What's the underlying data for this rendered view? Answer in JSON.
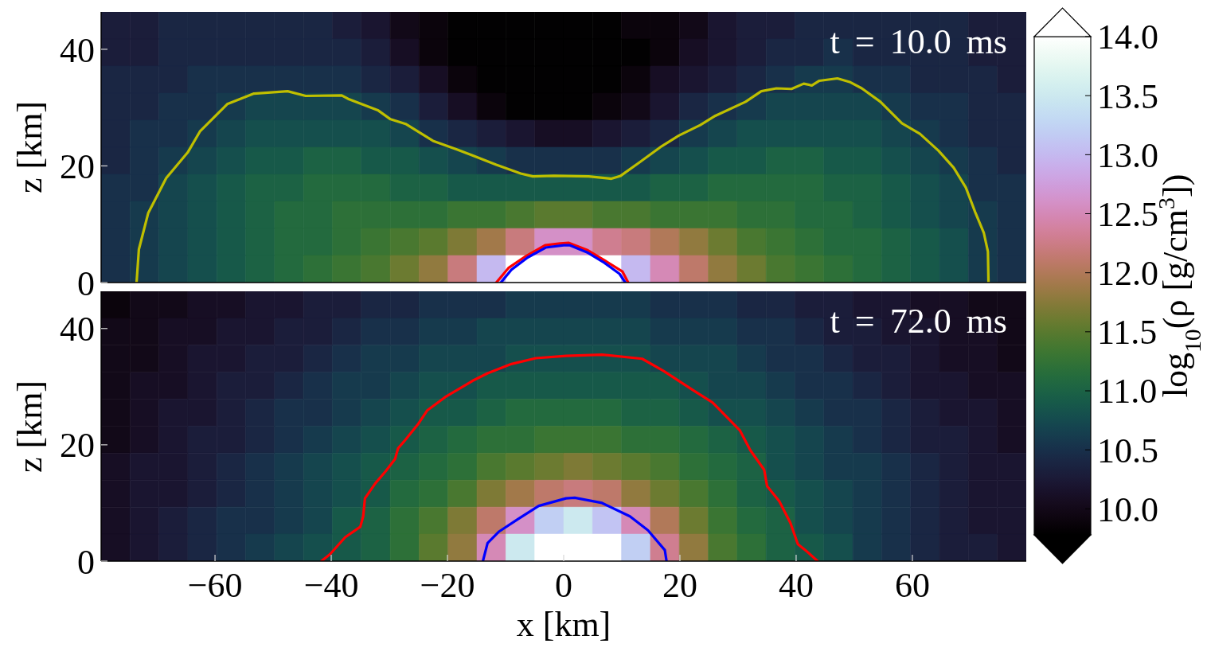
{
  "chart_data": [
    {
      "type": "heatmap",
      "cells": [
        [
          10.3,
          10.3,
          10.4,
          10.4,
          10.4,
          10.4,
          10.4,
          10.4,
          10.3,
          10.2,
          10.0,
          9.9,
          9.8,
          9.8,
          9.8,
          9.8,
          9.8,
          9.8,
          9.9,
          9.9,
          10.0,
          10.2,
          10.3,
          10.3,
          10.4,
          10.4,
          10.4,
          10.4,
          10.4,
          10.4,
          10.3,
          10.3
        ],
        [
          10.3,
          10.3,
          10.4,
          10.4,
          10.4,
          10.4,
          10.4,
          10.4,
          10.4,
          10.3,
          10.1,
          9.9,
          9.8,
          9.8,
          9.8,
          9.8,
          9.8,
          9.8,
          9.8,
          9.9,
          10.1,
          10.2,
          10.3,
          10.4,
          10.4,
          10.5,
          10.4,
          10.4,
          10.4,
          10.4,
          10.3,
          10.3
        ],
        [
          10.4,
          10.4,
          10.4,
          10.5,
          10.5,
          10.5,
          10.5,
          10.5,
          10.5,
          10.4,
          10.3,
          10.1,
          9.9,
          9.8,
          9.8,
          9.8,
          9.8,
          9.8,
          9.9,
          10.1,
          10.2,
          10.3,
          10.4,
          10.5,
          10.6,
          10.6,
          10.5,
          10.5,
          10.4,
          10.4,
          10.4,
          10.3
        ],
        [
          10.4,
          10.4,
          10.5,
          10.5,
          10.6,
          10.7,
          10.7,
          10.7,
          10.7,
          10.6,
          10.5,
          10.3,
          10.1,
          9.9,
          9.8,
          9.8,
          9.8,
          9.9,
          10.0,
          10.2,
          10.4,
          10.5,
          10.6,
          10.7,
          10.7,
          10.7,
          10.7,
          10.6,
          10.5,
          10.5,
          10.4,
          10.4
        ],
        [
          10.4,
          10.5,
          10.5,
          10.6,
          10.7,
          10.8,
          10.8,
          10.8,
          10.8,
          10.8,
          10.7,
          10.5,
          10.4,
          10.3,
          10.2,
          10.1,
          10.1,
          10.2,
          10.3,
          10.4,
          10.6,
          10.7,
          10.8,
          10.8,
          10.8,
          10.8,
          10.8,
          10.7,
          10.6,
          10.5,
          10.4,
          10.4
        ],
        [
          10.4,
          10.5,
          10.6,
          10.7,
          10.8,
          10.9,
          10.9,
          11.0,
          11.0,
          10.9,
          10.9,
          10.8,
          10.7,
          10.6,
          10.5,
          10.5,
          10.5,
          10.5,
          10.6,
          10.7,
          10.8,
          10.9,
          10.9,
          11.0,
          11.0,
          10.9,
          10.9,
          10.8,
          10.7,
          10.6,
          10.5,
          10.4
        ],
        [
          10.5,
          10.5,
          10.7,
          10.8,
          10.9,
          11.0,
          11.0,
          11.1,
          11.1,
          11.1,
          11.0,
          11.0,
          10.9,
          10.9,
          10.9,
          10.9,
          10.9,
          10.9,
          10.9,
          11.0,
          11.0,
          11.1,
          11.1,
          11.1,
          11.1,
          11.0,
          11.0,
          10.9,
          10.8,
          10.7,
          10.5,
          10.5
        ],
        [
          10.5,
          10.6,
          10.7,
          10.8,
          10.9,
          11.0,
          11.1,
          11.1,
          11.2,
          11.2,
          11.2,
          11.2,
          11.3,
          11.3,
          11.4,
          11.5,
          11.5,
          11.4,
          11.4,
          11.3,
          11.3,
          11.3,
          11.2,
          11.2,
          11.1,
          11.1,
          11.0,
          10.9,
          10.8,
          10.7,
          10.6,
          10.5
        ],
        [
          10.5,
          10.6,
          10.7,
          10.8,
          10.9,
          11.0,
          11.1,
          11.1,
          11.2,
          11.3,
          11.4,
          11.5,
          11.7,
          11.9,
          12.2,
          12.6,
          12.6,
          12.3,
          12.2,
          12.0,
          11.8,
          11.6,
          11.4,
          11.3,
          11.2,
          11.1,
          11.1,
          11.0,
          10.9,
          10.8,
          10.6,
          10.5
        ],
        [
          10.5,
          10.6,
          10.7,
          10.8,
          10.9,
          11.0,
          11.1,
          11.2,
          11.3,
          11.4,
          11.6,
          11.8,
          12.2,
          13.0,
          14.0,
          14.0,
          14.0,
          14.0,
          13.0,
          12.5,
          12.1,
          11.8,
          11.6,
          11.4,
          11.3,
          11.2,
          11.1,
          11.0,
          10.9,
          10.8,
          10.6,
          10.5
        ]
      ],
      "xlim": [
        -79.6,
        79.6
      ],
      "xticks": [
        -60,
        -40,
        -20,
        0,
        20,
        40,
        60
      ],
      "ylim": [
        0,
        46.4
      ],
      "yticks": [
        0,
        20,
        40
      ],
      "ylabel": "z [km]",
      "tick_labels": "y",
      "clim": [
        9.78,
        14
      ],
      "cticks": [
        {
          "value": 12,
          "label": "12.0"
        },
        {
          "value": 12.5,
          "label": "12.5"
        },
        {
          "value": 13,
          "label": "13.0"
        },
        {
          "value": 13.5,
          "label": "13.5"
        },
        {
          "value": 14,
          "label": "14.0"
        }
      ],
      "clabel": "log$_{10}$(ρ [g/cm$^{3}$])",
      "annotations": [
        "t = 10.0 ms"
      ],
      "series": [
        {
          "type": "line",
          "color": "#bfbf00",
          "x": [
            -73.5,
            -73.1,
            -71.5,
            -68.4,
            -64.7,
            -62.6,
            -57.9,
            -53.3,
            -47.5,
            -44.4,
            -38.2,
            -37.1,
            -31.9,
            -29.8,
            -27.2,
            -22.5,
            -18.3,
            -15.7,
            -11.6,
            -7.4,
            -5.3,
            -1.7,
            4.3,
            8.2,
            9.8,
            12.9,
            16.9,
            19.8,
            23.5,
            26.1,
            31.3,
            34.0,
            36.6,
            39.2,
            41.3,
            42.7,
            44.0,
            47.1,
            49.2,
            51.3,
            54.5,
            58.2,
            61.3,
            64.5,
            67.1,
            69.2,
            70.8,
            72.3,
            73.0,
            73.1
          ],
          "values": [
            0,
            5.7,
            11.9,
            17.9,
            22.3,
            25.9,
            30.6,
            32.4,
            32.8,
            32.0,
            32.1,
            31.5,
            29.5,
            28.0,
            27.2,
            24.3,
            22.8,
            21.8,
            20.2,
            18.7,
            18.2,
            18.3,
            18.2,
            17.8,
            18.3,
            20.5,
            23.4,
            25.2,
            27.0,
            28.6,
            31.0,
            32.8,
            33.3,
            33.2,
            34.1,
            33.8,
            34.6,
            35.0,
            34.4,
            33.3,
            31.0,
            27.3,
            25.5,
            22.6,
            19.7,
            16.3,
            12.1,
            8.5,
            5.3,
            0
          ]
        },
        {
          "type": "line",
          "color": "#ff0000",
          "x": [
            -11.6,
            -9.5,
            -6.4,
            -3.2,
            -0.6,
            0.9,
            4.0,
            7.2,
            10.1,
            11.1
          ],
          "values": [
            0,
            2.5,
            4.6,
            6.4,
            6.7,
            6.8,
            5.6,
            3.7,
            1.9,
            0
          ]
        },
        {
          "type": "line",
          "color": "#0000ff",
          "x": [
            -10.8,
            -9.0,
            -6.2,
            -3.1,
            0.0,
            1.0,
            4.0,
            7.0,
            9.6,
            10.6
          ],
          "values": [
            0,
            2.2,
            4.3,
            6.0,
            6.4,
            6.4,
            5.2,
            3.4,
            1.5,
            0
          ]
        }
      ]
    },
    {
      "type": "heatmap",
      "cells": [
        [
          9.9,
          10.0,
          10.0,
          10.1,
          10.1,
          10.2,
          10.2,
          10.3,
          10.3,
          10.4,
          10.4,
          10.5,
          10.5,
          10.5,
          10.6,
          10.6,
          10.6,
          10.6,
          10.6,
          10.5,
          10.5,
          10.5,
          10.4,
          10.4,
          10.3,
          10.3,
          10.2,
          10.2,
          10.1,
          10.1,
          10.0,
          10.0
        ],
        [
          10.0,
          10.0,
          10.1,
          10.1,
          10.2,
          10.2,
          10.3,
          10.3,
          10.4,
          10.5,
          10.5,
          10.6,
          10.6,
          10.7,
          10.7,
          10.7,
          10.7,
          10.7,
          10.7,
          10.6,
          10.6,
          10.6,
          10.5,
          10.5,
          10.4,
          10.3,
          10.3,
          10.2,
          10.2,
          10.1,
          10.1,
          10.0
        ],
        [
          10.0,
          10.0,
          10.1,
          10.2,
          10.2,
          10.3,
          10.3,
          10.4,
          10.5,
          10.6,
          10.6,
          10.7,
          10.7,
          10.7,
          10.8,
          10.8,
          10.8,
          10.8,
          10.8,
          10.7,
          10.7,
          10.7,
          10.6,
          10.5,
          10.5,
          10.4,
          10.3,
          10.3,
          10.2,
          10.1,
          10.1,
          10.0
        ],
        [
          10.0,
          10.1,
          10.1,
          10.2,
          10.3,
          10.3,
          10.4,
          10.5,
          10.6,
          10.6,
          10.7,
          10.8,
          10.8,
          10.9,
          10.9,
          10.9,
          10.9,
          10.9,
          10.9,
          10.9,
          10.8,
          10.7,
          10.7,
          10.6,
          10.5,
          10.5,
          10.4,
          10.3,
          10.2,
          10.2,
          10.1,
          10.1
        ],
        [
          10.0,
          10.1,
          10.2,
          10.2,
          10.3,
          10.4,
          10.5,
          10.5,
          10.6,
          10.7,
          10.8,
          10.9,
          10.9,
          11.0,
          11.1,
          11.1,
          11.1,
          11.1,
          11.0,
          11.0,
          10.9,
          10.8,
          10.8,
          10.7,
          10.6,
          10.5,
          10.5,
          10.4,
          10.3,
          10.2,
          10.2,
          10.1
        ],
        [
          10.0,
          10.1,
          10.2,
          10.3,
          10.3,
          10.4,
          10.5,
          10.6,
          10.7,
          10.8,
          10.9,
          11.0,
          11.1,
          11.2,
          11.2,
          11.3,
          11.3,
          11.3,
          11.2,
          11.2,
          11.1,
          11.0,
          10.9,
          10.8,
          10.7,
          10.6,
          10.5,
          10.4,
          10.3,
          10.3,
          10.2,
          10.1
        ],
        [
          10.1,
          10.2,
          10.2,
          10.3,
          10.4,
          10.5,
          10.6,
          10.7,
          10.8,
          10.9,
          11.0,
          11.1,
          11.2,
          11.4,
          11.5,
          11.6,
          11.7,
          11.6,
          11.5,
          11.4,
          11.2,
          11.1,
          11.0,
          10.8,
          10.7,
          10.6,
          10.6,
          10.5,
          10.4,
          10.3,
          10.2,
          10.2
        ],
        [
          10.1,
          10.2,
          10.2,
          10.3,
          10.4,
          10.5,
          10.6,
          10.7,
          10.8,
          10.9,
          11.1,
          11.2,
          11.4,
          11.7,
          11.9,
          12.1,
          12.2,
          12.1,
          11.8,
          11.6,
          11.4,
          11.2,
          11.0,
          10.9,
          10.8,
          10.7,
          10.6,
          10.5,
          10.4,
          10.3,
          10.2,
          10.2
        ],
        [
          10.1,
          10.2,
          10.3,
          10.4,
          10.5,
          10.5,
          10.6,
          10.7,
          10.9,
          11.0,
          11.2,
          11.4,
          11.7,
          12.1,
          12.6,
          13.2,
          13.5,
          13.1,
          12.5,
          12.0,
          11.6,
          11.3,
          11.1,
          11.0,
          10.8,
          10.7,
          10.6,
          10.5,
          10.4,
          10.3,
          10.2,
          10.2
        ],
        [
          10.1,
          10.2,
          10.3,
          10.4,
          10.5,
          10.6,
          10.7,
          10.8,
          10.9,
          11.0,
          11.2,
          11.5,
          11.8,
          12.5,
          13.5,
          14.0,
          14.0,
          14.0,
          13.2,
          12.3,
          11.8,
          11.4,
          11.2,
          11.0,
          10.9,
          10.8,
          10.6,
          10.5,
          10.4,
          10.3,
          10.3,
          10.2
        ]
      ],
      "xlim": [
        -79.6,
        79.6
      ],
      "xticks": [
        {
          "value": -60,
          "label": "−60"
        },
        {
          "value": -40,
          "label": "−40"
        },
        {
          "value": -20,
          "label": "−20"
        },
        0,
        20,
        40,
        60
      ],
      "ylim": [
        0,
        46.4
      ],
      "yticks": [
        0,
        20,
        40
      ],
      "xlabel": "x [km]",
      "ylabel": "z [km]",
      "clim": [
        9.78,
        14
      ],
      "cticks": [
        {
          "value": 10,
          "label": "10.0"
        },
        {
          "value": 10.5,
          "label": "10.5"
        },
        {
          "value": 11,
          "label": "11.0"
        },
        {
          "value": 11.5,
          "label": "11.5"
        }
      ],
      "annotations": [
        "t = 72.0 ms"
      ],
      "series": [
        {
          "type": "line",
          "color": "#ff0000",
          "x": [
            -41.7,
            -40.2,
            -37.6,
            -35.0,
            -34.5,
            -34.2,
            -32.4,
            -30.6,
            -29.0,
            -28.5,
            -27.2,
            -25.1,
            -23.5,
            -20.4,
            -15.7,
            -13.1,
            -9.0,
            -4.8,
            0.4,
            6.6,
            13.5,
            17.2,
            22.4,
            25.6,
            30.3,
            32.1,
            34.5,
            35.0,
            37.1,
            39.0,
            40.3,
            41.8,
            43.7
          ],
          "values": [
            0,
            1.2,
            4.1,
            5.9,
            7.7,
            10.8,
            13.4,
            15.5,
            17.6,
            19.4,
            20.9,
            23.5,
            25.9,
            28.2,
            31.0,
            32.3,
            33.9,
            34.9,
            35.3,
            35.5,
            34.8,
            32.7,
            29.3,
            27.3,
            22.5,
            19.1,
            15.7,
            12.9,
            10.3,
            6.6,
            2.9,
            1.7,
            0
          ]
        },
        {
          "type": "line",
          "color": "#0000ff",
          "x": [
            -13.9,
            -13.1,
            -11.1,
            -7.9,
            -4.3,
            0.4,
            1.9,
            6.6,
            11.4,
            14.5,
            17.4,
            17.7
          ],
          "values": [
            0,
            3.1,
            5.1,
            7.2,
            9.5,
            10.8,
            10.9,
            10.0,
            7.7,
            5.3,
            1.9,
            0
          ]
        }
      ]
    }
  ]
}
